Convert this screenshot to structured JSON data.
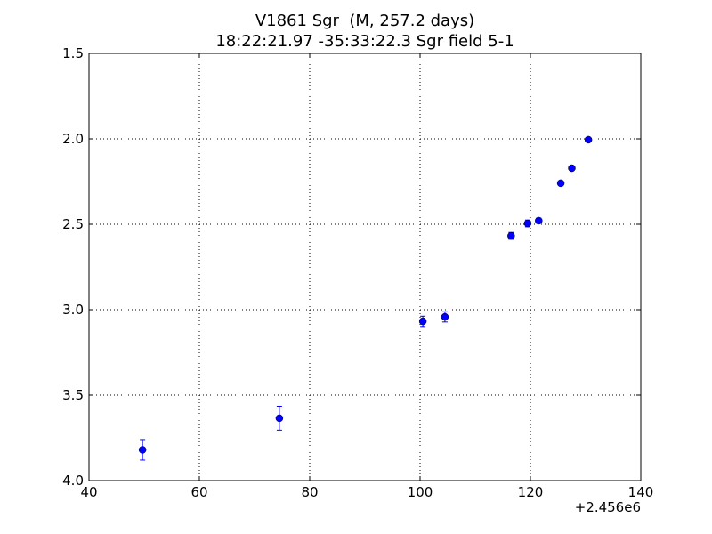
{
  "chart_data": {
    "type": "errorbar",
    "title": "V1861 Sgr  (M, 257.2 days)",
    "subtitle": "18:22:21.97 -35:33:22.3 Sgr field 5-1",
    "x_offset_label": "+2.456e6",
    "x": [
      49.7,
      74.5,
      100.5,
      104.5,
      116.5,
      119.5,
      121.5,
      125.5,
      127.5,
      130.5
    ],
    "values": [
      3.82,
      3.635,
      3.068,
      3.042,
      2.568,
      2.495,
      2.479,
      2.26,
      2.172,
      2.005
    ],
    "errors": [
      0.06,
      0.07,
      0.03,
      0.03,
      0.02,
      0.02,
      0.015,
      0.01,
      0.01,
      0.01
    ],
    "color": "#0000ff",
    "xlim": [
      40,
      140
    ],
    "xticks": [
      40,
      60,
      80,
      100,
      120,
      140
    ],
    "ylim": [
      4,
      1.5
    ],
    "yticks": [
      {
        "value": 1.5,
        "label": "1.5"
      },
      {
        "value": 2,
        "label": "2.0"
      },
      2.5,
      {
        "value": 3,
        "label": "3.0"
      },
      3.5,
      {
        "value": 4,
        "label": "4.0"
      }
    ],
    "grid": true
  }
}
